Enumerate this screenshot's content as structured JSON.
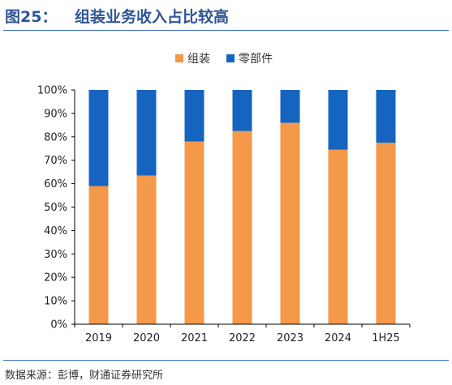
{
  "figure": {
    "number": "图25：",
    "title": "组装业务收入占比较高",
    "source": "数据来源：彭博，财通证券研究所"
  },
  "chart_data": {
    "type": "bar",
    "stacked": true,
    "percent": true,
    "categories": [
      "2019",
      "2020",
      "2021",
      "2022",
      "2023",
      "2024",
      "1H25"
    ],
    "series": [
      {
        "name": "组装",
        "color": "#f4984a",
        "values": [
          59,
          63.5,
          78,
          82.5,
          86,
          74.5,
          77.5
        ]
      },
      {
        "name": "零部件",
        "color": "#1565c0",
        "values": [
          41,
          36.5,
          22,
          17.5,
          14,
          25.5,
          22.5
        ]
      }
    ],
    "ylim": [
      0,
      100
    ],
    "yticks": [
      "0%",
      "10%",
      "20%",
      "30%",
      "40%",
      "50%",
      "60%",
      "70%",
      "80%",
      "90%",
      "100%"
    ],
    "legend_position": "top-center",
    "grid": false
  }
}
